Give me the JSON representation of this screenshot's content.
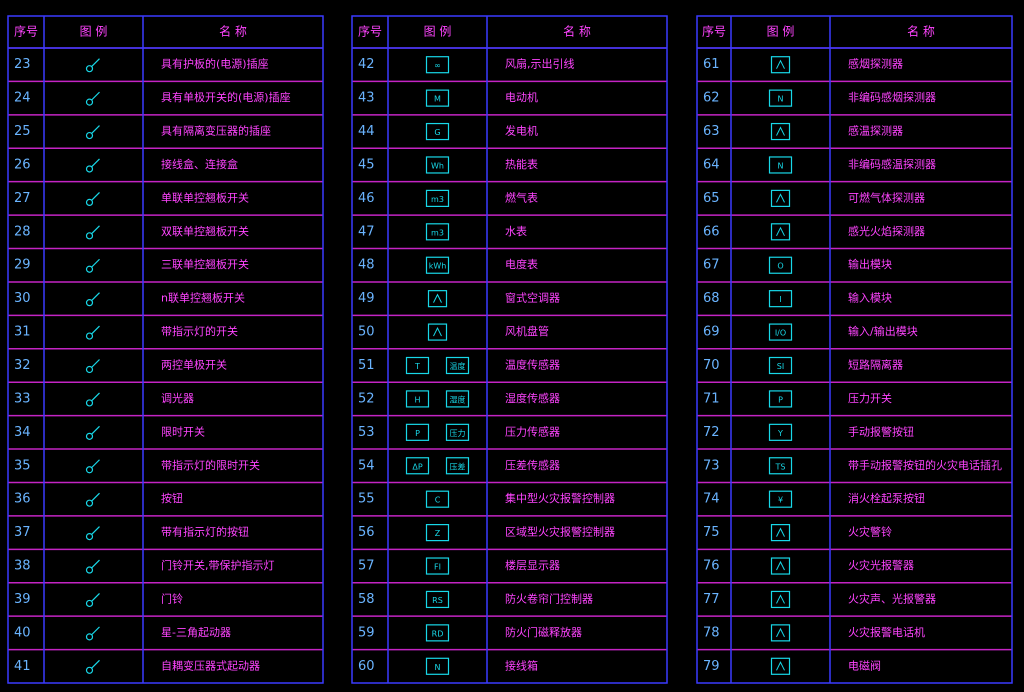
{
  "tables": [
    {
      "header": [
        "序号",
        "图 例",
        "名 称"
      ],
      "rows": [
        {
          "no": 23,
          "name": "具有护板的(电源)插座"
        },
        {
          "no": 24,
          "name": "具有单极开关的(电源)插座"
        },
        {
          "no": 25,
          "name": "具有隔离变压器的插座"
        },
        {
          "no": 26,
          "name": "接线盒、连接盒"
        },
        {
          "no": 27,
          "name": "单联单控翘板开关"
        },
        {
          "no": 28,
          "name": "双联单控翘板开关"
        },
        {
          "no": 29,
          "name": "三联单控翘板开关"
        },
        {
          "no": 30,
          "name": "n联单控翘板开关"
        },
        {
          "no": 31,
          "name": "带指示灯的开关"
        },
        {
          "no": 32,
          "name": "两控单极开关"
        },
        {
          "no": 33,
          "name": "调光器"
        },
        {
          "no": 34,
          "name": "限时开关"
        },
        {
          "no": 35,
          "name": "带指示灯的限时开关"
        },
        {
          "no": 36,
          "name": "按钮"
        },
        {
          "no": 37,
          "name": "带有指示灯的按钮"
        },
        {
          "no": 38,
          "name": "门铃开关,带保护指示灯"
        },
        {
          "no": 39,
          "name": "门铃"
        },
        {
          "no": 40,
          "name": "星-三角起动器"
        },
        {
          "no": 41,
          "name": "自耦变压器式起动器"
        }
      ]
    },
    {
      "header": [
        "序号",
        "图 例",
        "名 称"
      ],
      "rows": [
        {
          "no": 42,
          "name": "风扇,示出引线",
          "icon": [
            "∞"
          ]
        },
        {
          "no": 43,
          "name": "电动机",
          "icon": [
            "M"
          ]
        },
        {
          "no": 44,
          "name": "发电机",
          "icon": [
            "G"
          ]
        },
        {
          "no": 45,
          "name": "热能表",
          "icon": [
            "Wh"
          ]
        },
        {
          "no": 46,
          "name": "燃气表",
          "icon": [
            "m3"
          ]
        },
        {
          "no": 47,
          "name": "水表",
          "icon": [
            "m3"
          ]
        },
        {
          "no": 48,
          "name": "电度表",
          "icon": [
            "kWh"
          ]
        },
        {
          "no": 49,
          "name": "窗式空调器"
        },
        {
          "no": 50,
          "name": "风机盘管"
        },
        {
          "no": 51,
          "name": "温度传感器",
          "icon": [
            "T",
            "温度"
          ]
        },
        {
          "no": 52,
          "name": "湿度传感器",
          "icon": [
            "H",
            "湿度"
          ]
        },
        {
          "no": 53,
          "name": "压力传感器",
          "icon": [
            "P",
            "压力"
          ]
        },
        {
          "no": 54,
          "name": "压差传感器",
          "icon": [
            "ΔP",
            "压差"
          ]
        },
        {
          "no": 55,
          "name": "集中型火灾报警控制器",
          "icon": [
            "C"
          ]
        },
        {
          "no": 56,
          "name": "区域型火灾报警控制器",
          "icon": [
            "Z"
          ]
        },
        {
          "no": 57,
          "name": "楼层显示器",
          "icon": [
            "FI"
          ]
        },
        {
          "no": 58,
          "name": "防火卷帘门控制器",
          "icon": [
            "RS"
          ]
        },
        {
          "no": 59,
          "name": "防火门磁释放器",
          "icon": [
            "RD"
          ]
        },
        {
          "no": 60,
          "name": "接线箱",
          "icon": [
            "N"
          ]
        }
      ]
    },
    {
      "header": [
        "序号",
        "图 例",
        "名 称"
      ],
      "rows": [
        {
          "no": 61,
          "name": "感烟探测器"
        },
        {
          "no": 62,
          "name": "非编码感烟探测器",
          "icon": [
            "N"
          ]
        },
        {
          "no": 63,
          "name": "感温探测器"
        },
        {
          "no": 64,
          "name": "非编码感温探测器",
          "icon": [
            "N"
          ]
        },
        {
          "no": 65,
          "name": "可燃气体探测器"
        },
        {
          "no": 66,
          "name": "感光火焰探测器"
        },
        {
          "no": 67,
          "name": "输出模块",
          "icon": [
            "O"
          ]
        },
        {
          "no": 68,
          "name": "输入模块",
          "icon": [
            "I"
          ]
        },
        {
          "no": 69,
          "name": "输入/输出模块",
          "icon": [
            "I/O"
          ]
        },
        {
          "no": 70,
          "name": "短路隔离器",
          "icon": [
            "SI"
          ]
        },
        {
          "no": 71,
          "name": "压力开关",
          "icon": [
            "P"
          ]
        },
        {
          "no": 72,
          "name": "手动报警按钮",
          "icon": [
            "Y"
          ]
        },
        {
          "no": 73,
          "name": "带手动报警按钮的火灾电话插孔",
          "icon": [
            "TS"
          ]
        },
        {
          "no": 74,
          "name": "消火栓起泵按钮",
          "icon": [
            "¥"
          ]
        },
        {
          "no": 75,
          "name": "火灾警铃"
        },
        {
          "no": 76,
          "name": "火灾光报警器"
        },
        {
          "no": 77,
          "name": "火灾声、光报警器"
        },
        {
          "no": 78,
          "name": "火灾报警电话机"
        },
        {
          "no": 79,
          "name": "电磁阀"
        }
      ]
    }
  ]
}
